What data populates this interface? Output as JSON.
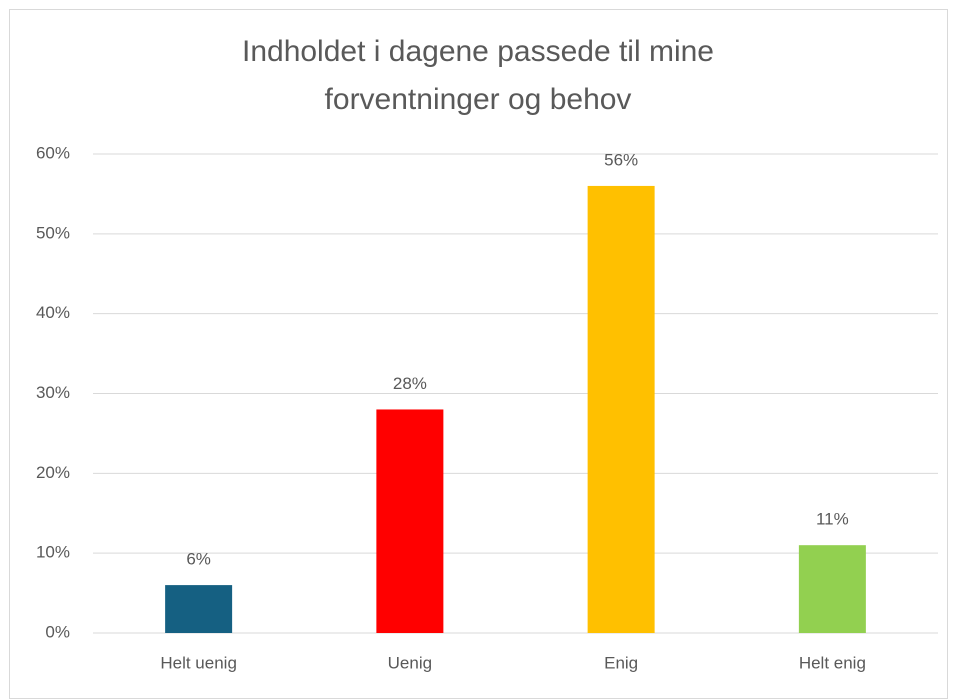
{
  "chart_data": {
    "type": "bar",
    "title": "Indholdet i dagene passede til mine forventninger og behov",
    "categories": [
      "Helt uenig",
      "Uenig",
      "Enig",
      "Helt enig"
    ],
    "values": [
      6,
      28,
      56,
      11
    ],
    "value_labels": [
      "6%",
      "28%",
      "56%",
      "11%"
    ],
    "colors": [
      "#156082",
      "#ff0000",
      "#ffc000",
      "#92d050"
    ],
    "ylim": [
      0,
      60
    ],
    "yticks": [
      {
        "value": 0,
        "label": "0%"
      },
      {
        "value": 10,
        "label": "10%"
      },
      {
        "value": 20,
        "label": "20%"
      },
      {
        "value": 30,
        "label": "30%"
      },
      {
        "value": 40,
        "label": "40%"
      },
      {
        "value": 50,
        "label": "50%"
      },
      {
        "value": 60,
        "label": "60%"
      }
    ],
    "grid": true
  }
}
